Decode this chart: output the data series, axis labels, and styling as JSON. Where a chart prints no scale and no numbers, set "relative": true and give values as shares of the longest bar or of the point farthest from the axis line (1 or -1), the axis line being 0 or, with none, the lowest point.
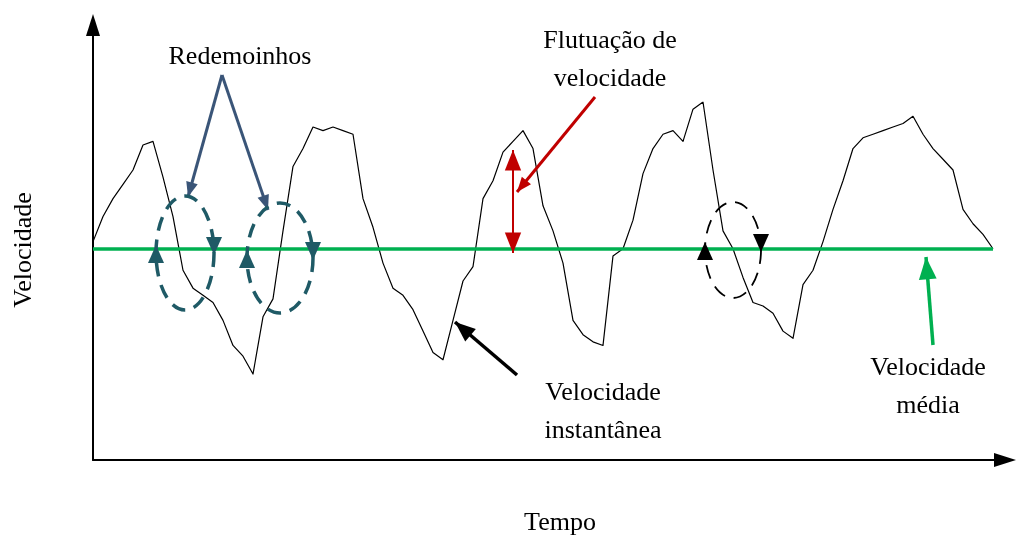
{
  "chart_data": {
    "type": "line",
    "relative": true,
    "xlabel": "Tempo",
    "ylabel": "Velocidade",
    "color": "#000000",
    "marker": "none",
    "line_style": "solid",
    "categories": [
      null,
      null,
      null,
      null,
      null,
      null,
      null,
      null,
      null,
      null,
      null,
      null,
      null,
      null,
      null,
      null,
      null,
      null,
      null,
      null,
      null,
      null,
      null,
      null,
      null,
      null,
      null,
      null,
      null,
      null,
      null,
      null,
      null,
      null,
      null,
      null,
      null,
      null,
      null,
      null,
      null,
      null,
      null,
      null,
      null,
      null,
      null,
      null,
      null,
      null,
      null,
      null,
      null,
      null,
      null,
      null,
      null,
      null,
      null,
      null,
      null,
      null,
      null,
      null,
      null,
      null,
      null,
      null,
      null,
      null,
      null,
      null,
      null,
      null,
      null,
      null,
      null,
      null,
      null,
      null,
      null,
      null,
      null,
      null,
      null,
      null,
      null,
      null,
      null,
      null,
      null
    ],
    "values": [
      0.61,
      0.68,
      0.73,
      0.77,
      0.81,
      0.88,
      0.89,
      0.79,
      0.68,
      0.53,
      0.48,
      0.46,
      0.44,
      0.39,
      0.32,
      0.29,
      0.24,
      0.4,
      0.45,
      0.64,
      0.82,
      0.87,
      0.93,
      0.92,
      0.93,
      0.92,
      0.91,
      0.73,
      0.65,
      0.55,
      0.48,
      0.46,
      0.42,
      0.36,
      0.3,
      0.28,
      0.39,
      0.5,
      0.54,
      0.73,
      0.78,
      0.86,
      0.89,
      0.92,
      0.87,
      0.71,
      0.64,
      0.55,
      0.39,
      0.35,
      0.33,
      0.32,
      0.57,
      0.59,
      0.67,
      0.8,
      0.87,
      0.91,
      0.92,
      0.89,
      0.98,
      1,
      0.81,
      0.64,
      0.59,
      0.51,
      0.44,
      0.43,
      0.41,
      0.36,
      0.34,
      0.49,
      0.53,
      0.61,
      0.7,
      0.78,
      0.87,
      0.9,
      0.91,
      0.92,
      0.93,
      0.94,
      0.96,
      0.91,
      0.87,
      0.84,
      0.81,
      0.7,
      0.66,
      0.63,
      0.59
    ],
    "ref_lines": [
      {
        "axis": "y",
        "value": 0.59,
        "color": "#00b050"
      }
    ],
    "annotations": [
      "Redemoinhos",
      "Flutuação de\nvelocidade",
      "Velocidade\ninstantânea",
      "Velocidade\nmédia"
    ]
  }
}
